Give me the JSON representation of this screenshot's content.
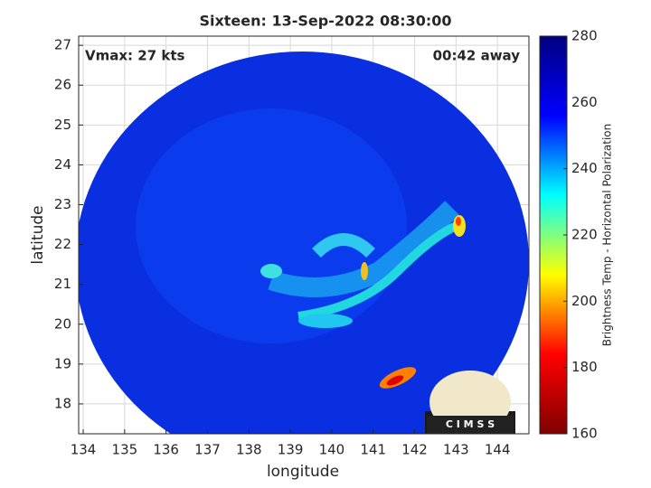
{
  "chart_data": {
    "type": "image",
    "title": "Sixteen: 13-Sep-2022 08:30:00",
    "xlabel": "longitude",
    "ylabel": "latitude",
    "xlim": [
      133.89,
      144.76
    ],
    "ylim": [
      17.25,
      27.23
    ],
    "xticks": [
      134,
      135,
      136,
      137,
      138,
      139,
      140,
      141,
      142,
      143,
      144
    ],
    "yticks": [
      18,
      19,
      20,
      21,
      22,
      23,
      24,
      25,
      26,
      27
    ],
    "grid": true,
    "annotations": [
      "Vmax: 27 kts",
      "00:42 away"
    ],
    "colorbar": {
      "label": "Brightness Temp - Horizontal Polarization",
      "lim": [
        160,
        280
      ],
      "ticks": [
        160,
        180,
        200,
        220,
        240,
        260,
        280
      ],
      "colors": [
        "#800000",
        "#ff0000",
        "#ffff00",
        "#00ffff",
        "#0000ff",
        "#000080"
      ]
    },
    "logo": "C I M S S"
  }
}
